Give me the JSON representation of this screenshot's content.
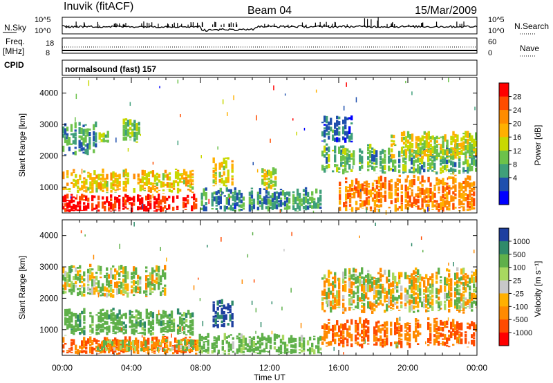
{
  "header": {
    "station": "Inuvik (fitACF)",
    "beam": "Beam 04",
    "date": "15/Mar/2009"
  },
  "strip_labels": {
    "nsky": "N.Sky",
    "nsearch": "N.Search",
    "freq": "Freq.",
    "mhz": "[MHz]",
    "nave": "Nave",
    "cpid": "CPID",
    "cpid_value": "normalsound (fast) 157"
  },
  "strip_ticks": {
    "left_top": [
      "10^5",
      "10^0"
    ],
    "right_top": [
      "10^5",
      "10^0"
    ],
    "left_mid": [
      "18",
      "8"
    ],
    "right_mid": [
      "60",
      "0"
    ]
  },
  "axes": {
    "ylabel": "Slant Range [km]",
    "xlabel": "Time UT",
    "xticks": [
      "00:00",
      "04:00",
      "08:00",
      "12:00",
      "16:00",
      "20:00",
      "00:00"
    ],
    "yticks": [
      "1000",
      "2000",
      "3000",
      "4000"
    ]
  },
  "power_bar": {
    "label": "Power [dB]",
    "ticks": [
      "28",
      "24",
      "20",
      "16",
      "12",
      "8",
      "4"
    ],
    "colors": [
      "#ff0000",
      "#ff4d00",
      "#ff8c00",
      "#ffb000",
      "#c8d800",
      "#6cc24a",
      "#3f9f7a",
      "#1f4fae",
      "#0000ff"
    ]
  },
  "velocity_bar": {
    "label": "Velocity [m s⁻¹]",
    "ticks": [
      "1000",
      "500",
      "100",
      "25",
      "-25",
      "-100",
      "-500",
      "-1000"
    ],
    "colors": [
      "#1e3fa0",
      "#2f8a6a",
      "#5fb04a",
      "#a8d860",
      "#c8c8c8",
      "#ffb000",
      "#ff8a00",
      "#ff4b00",
      "#ff0000"
    ]
  },
  "chart_data": [
    {
      "type": "heatmap",
      "title": "Power",
      "xlabel": "Time UT",
      "ylabel": "Slant Range [km]",
      "xlim": [
        0,
        24
      ],
      "ylim": [
        180,
        4500
      ],
      "colorbar_label": "Power [dB]",
      "colorbar_ticks": [
        4,
        8,
        12,
        16,
        20,
        24,
        28
      ],
      "patches": [
        {
          "t0": 0.0,
          "t1": 7.8,
          "r0": 200,
          "r1": 800,
          "value": 28
        },
        {
          "t0": 0.0,
          "t1": 7.6,
          "r0": 800,
          "r1": 1600,
          "value": 18
        },
        {
          "t0": 0.0,
          "t1": 2.0,
          "r0": 2000,
          "r1": 3100,
          "value": 10
        },
        {
          "t0": 2.1,
          "t1": 2.7,
          "r0": 2400,
          "r1": 2800,
          "value": 14
        },
        {
          "t0": 3.5,
          "t1": 4.5,
          "r0": 2400,
          "r1": 3200,
          "value": 14
        },
        {
          "t0": 8.7,
          "t1": 9.9,
          "r0": 1000,
          "r1": 2000,
          "value": 18
        },
        {
          "t0": 7.9,
          "t1": 15.0,
          "r0": 200,
          "r1": 1000,
          "value": 10
        },
        {
          "t0": 11.4,
          "t1": 12.4,
          "r0": 900,
          "r1": 1700,
          "value": 16
        },
        {
          "t0": 15.0,
          "t1": 24.0,
          "r0": 1400,
          "r1": 2400,
          "value": 12
        },
        {
          "t0": 15.0,
          "t1": 16.8,
          "r0": 2400,
          "r1": 3300,
          "value": 8
        },
        {
          "t0": 16.0,
          "t1": 24.0,
          "r0": 200,
          "r1": 1400,
          "value": 22
        },
        {
          "t0": 19.0,
          "t1": 24.0,
          "r0": 1900,
          "r1": 2800,
          "value": 16
        }
      ]
    },
    {
      "type": "heatmap",
      "title": "Velocity",
      "xlabel": "Time UT",
      "ylabel": "Slant Range [km]",
      "xlim": [
        0,
        24
      ],
      "ylim": [
        180,
        4500
      ],
      "colorbar_label": "Velocity [m s⁻¹]",
      "colorbar_ticks": [
        -1000,
        -500,
        -100,
        -25,
        25,
        100,
        500,
        1000
      ],
      "patches": [
        {
          "t0": 0.0,
          "t1": 7.8,
          "r0": 200,
          "r1": 800,
          "value": -300
        },
        {
          "t0": 0.0,
          "t1": 7.6,
          "r0": 800,
          "r1": 1700,
          "value": 200
        },
        {
          "t0": 2.0,
          "t1": 8.0,
          "r0": 300,
          "r1": 700,
          "value": 0
        },
        {
          "t0": 8.7,
          "t1": 9.9,
          "r0": 1000,
          "r1": 2000,
          "value": 800
        },
        {
          "t0": 7.9,
          "t1": 15.0,
          "r0": 200,
          "r1": 900,
          "value": 150
        },
        {
          "t0": 15.0,
          "t1": 24.0,
          "r0": 400,
          "r1": 1400,
          "value": -300
        },
        {
          "t0": 15.0,
          "t1": 24.0,
          "r0": 1500,
          "r1": 3000,
          "value": 0
        },
        {
          "t0": 0.0,
          "t1": 6.0,
          "r0": 2000,
          "r1": 3100,
          "value": 60
        }
      ]
    },
    {
      "type": "line",
      "title": "N.Sky",
      "xlim": [
        0,
        24
      ],
      "series": []
    }
  ]
}
